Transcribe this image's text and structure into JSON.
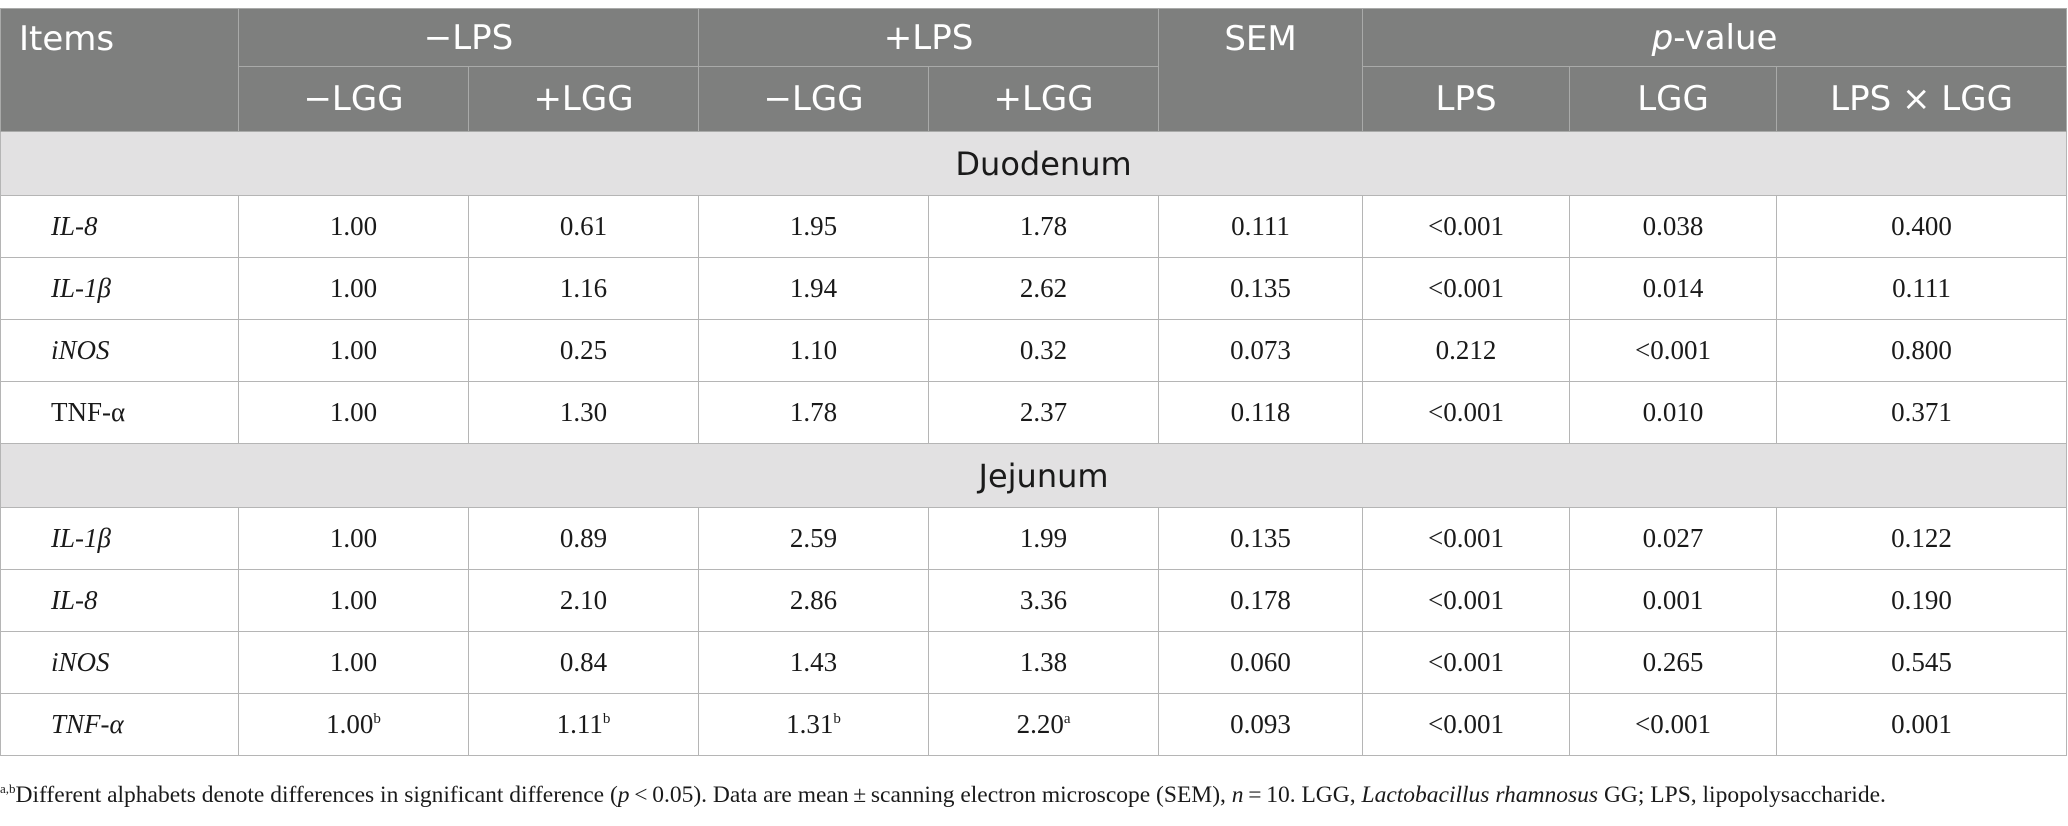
{
  "header": {
    "items": "Items",
    "minus_lps": "−LPS",
    "plus_lps": "+LPS",
    "sem": "SEM",
    "p_value_italic": "p",
    "p_value_rest": "-value",
    "minus_lgg_1": "−LGG",
    "plus_lgg_1": "+LGG",
    "minus_lgg_2": "−LGG",
    "plus_lgg_2": "+LGG",
    "p_lps": "LPS",
    "p_lgg": "LGG",
    "p_lps_x_lgg": "LPS × LGG"
  },
  "sections": [
    {
      "name": "Duodenum",
      "rows": [
        {
          "item": "IL-8",
          "italic": true,
          "neg_lps_neg_lgg": "1.00",
          "neg_lps_pos_lgg": "0.61",
          "pos_lps_neg_lgg": "1.95",
          "pos_lps_pos_lgg": "1.78",
          "sem": "0.111",
          "p_lps": "<0.001",
          "p_lgg": "0.038",
          "p_int": "0.400"
        },
        {
          "item": "IL-1β",
          "italic": true,
          "neg_lps_neg_lgg": "1.00",
          "neg_lps_pos_lgg": "1.16",
          "pos_lps_neg_lgg": "1.94",
          "pos_lps_pos_lgg": "2.62",
          "sem": "0.135",
          "p_lps": "<0.001",
          "p_lgg": "0.014",
          "p_int": "0.111"
        },
        {
          "item": "iNOS",
          "italic": true,
          "neg_lps_neg_lgg": "1.00",
          "neg_lps_pos_lgg": "0.25",
          "pos_lps_neg_lgg": "1.10",
          "pos_lps_pos_lgg": "0.32",
          "sem": "0.073",
          "p_lps": "0.212",
          "p_lgg": "<0.001",
          "p_int": "0.800"
        },
        {
          "item": "TNF-α",
          "italic": false,
          "neg_lps_neg_lgg": "1.00",
          "neg_lps_pos_lgg": "1.30",
          "pos_lps_neg_lgg": "1.78",
          "pos_lps_pos_lgg": "2.37",
          "sem": "0.118",
          "p_lps": "<0.001",
          "p_lgg": "0.010",
          "p_int": "0.371"
        }
      ]
    },
    {
      "name": "Jejunum",
      "rows": [
        {
          "item": "IL-1β",
          "italic": true,
          "neg_lps_neg_lgg": "1.00",
          "neg_lps_pos_lgg": "0.89",
          "pos_lps_neg_lgg": "2.59",
          "pos_lps_pos_lgg": "1.99",
          "sem": "0.135",
          "p_lps": "<0.001",
          "p_lgg": "0.027",
          "p_int": "0.122"
        },
        {
          "item": "IL-8",
          "italic": true,
          "neg_lps_neg_lgg": "1.00",
          "neg_lps_pos_lgg": "2.10",
          "pos_lps_neg_lgg": "2.86",
          "pos_lps_pos_lgg": "3.36",
          "sem": "0.178",
          "p_lps": "<0.001",
          "p_lgg": "0.001",
          "p_int": "0.190"
        },
        {
          "item": "iNOS",
          "italic": true,
          "neg_lps_neg_lgg": "1.00",
          "neg_lps_pos_lgg": "0.84",
          "pos_lps_neg_lgg": "1.43",
          "pos_lps_pos_lgg": "1.38",
          "sem": "0.060",
          "p_lps": "<0.001",
          "p_lgg": "0.265",
          "p_int": "0.545"
        },
        {
          "item": "TNF-α",
          "italic": true,
          "neg_lps_neg_lgg": "1.00",
          "neg_lps_neg_lgg_sup": "b",
          "neg_lps_pos_lgg": "1.11",
          "neg_lps_pos_lgg_sup": "b",
          "pos_lps_neg_lgg": "1.31",
          "pos_lps_neg_lgg_sup": "b",
          "pos_lps_pos_lgg": "2.20",
          "pos_lps_pos_lgg_sup": "a",
          "sem": "0.093",
          "p_lps": "<0.001",
          "p_lgg": "<0.001",
          "p_int": "0.001"
        }
      ]
    }
  ],
  "footnote": {
    "sup": "a,b",
    "part1": "Different alphabets denote differences in significant difference (",
    "p": "p",
    "part2": " < 0.05). Data are mean ± scanning electron microscope (SEM), ",
    "n": "n",
    "part3": " = 10. LGG, ",
    "species": "Lactobacillus rhamnosus",
    "part4": " GG; LPS, lipopolysaccharide."
  }
}
